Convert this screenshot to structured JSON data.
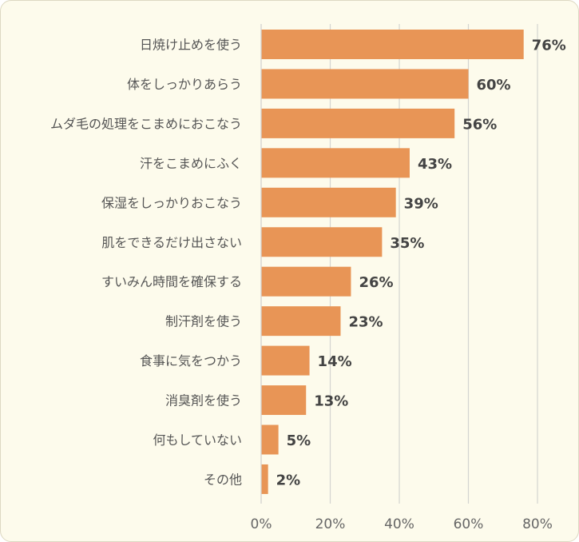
{
  "chart_data": {
    "type": "bar",
    "orientation": "horizontal",
    "categories": [
      "日焼け止めを使う",
      "体をしっかりあらう",
      "ムダ毛の処理をこまめにおこなう",
      "汗をこまめにふく",
      "保湿をしっかりおこなう",
      "肌をできるだけ出さない",
      "すいみん時間を確保する",
      "制汗剤を使う",
      "食事に気をつかう",
      "消臭剤を使う",
      "何もしていない",
      "その他"
    ],
    "values": [
      76,
      60,
      56,
      43,
      39,
      35,
      26,
      23,
      14,
      13,
      5,
      2
    ],
    "value_labels": [
      "76%",
      "60%",
      "56%",
      "43%",
      "39%",
      "35%",
      "26%",
      "23%",
      "14%",
      "13%",
      "5%",
      "2%"
    ],
    "xlim": [
      0,
      80
    ],
    "xticks": [
      0,
      20,
      40,
      60,
      80
    ],
    "xtick_labels": [
      "0%",
      "20%",
      "40%",
      "60%",
      "80%"
    ],
    "grid": "vertical",
    "legend": "none",
    "colors": {
      "bar": "#e89556",
      "grid": "#d4d4d0",
      "background": "#fdfbec"
    }
  }
}
